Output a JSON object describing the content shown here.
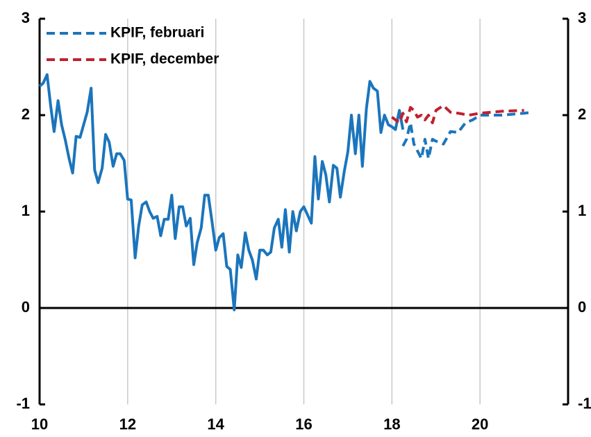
{
  "chart_data": {
    "type": "line",
    "xlim": [
      10,
      22
    ],
    "xticks": [
      10,
      12,
      14,
      16,
      18,
      20
    ],
    "ylim": [
      -1,
      3
    ],
    "yticks": [
      -1,
      0,
      1,
      2,
      3
    ],
    "y2lim": [
      -1,
      3
    ],
    "y2ticks": [
      -1,
      0,
      1,
      2,
      3
    ],
    "grid": true,
    "legend": "upper left",
    "series": [
      {
        "color": "#1b75bc",
        "dash": false,
        "x": [
          10.0,
          10.08,
          10.17,
          10.25,
          10.33,
          10.42,
          10.5,
          10.58,
          10.67,
          10.75,
          10.83,
          10.92,
          11.0,
          11.08,
          11.17,
          11.25,
          11.33,
          11.42,
          11.5,
          11.58,
          11.67,
          11.75,
          11.83,
          11.92,
          12.0,
          12.08,
          12.17,
          12.25,
          12.33,
          12.42,
          12.5,
          12.58,
          12.67,
          12.75,
          12.83,
          12.92,
          13.0,
          13.08,
          13.17,
          13.25,
          13.33,
          13.42,
          13.5,
          13.58,
          13.67,
          13.75,
          13.83,
          13.92,
          14.0,
          14.08,
          14.17,
          14.25,
          14.33,
          14.42,
          14.5,
          14.58,
          14.67,
          14.75,
          14.83,
          14.92,
          15.0,
          15.08,
          15.17,
          15.25,
          15.33,
          15.42,
          15.5,
          15.58,
          15.67,
          15.75,
          15.83,
          15.92,
          16.0,
          16.08,
          16.17,
          16.25,
          16.33,
          16.42,
          16.5,
          16.58,
          16.67,
          16.75,
          16.83,
          16.92,
          17.0,
          17.08,
          17.17,
          17.25,
          17.33,
          17.42,
          17.5,
          17.58,
          17.67,
          17.75,
          17.83,
          17.92,
          18.0,
          18.08,
          18.17,
          18.25
        ],
        "values": [
          2.3,
          2.33,
          2.42,
          2.1,
          1.83,
          2.15,
          1.9,
          1.75,
          1.55,
          1.4,
          1.78,
          1.77,
          1.9,
          2.03,
          2.28,
          1.43,
          1.3,
          1.45,
          1.8,
          1.72,
          1.47,
          1.6,
          1.6,
          1.53,
          1.13,
          1.12,
          0.52,
          0.85,
          1.07,
          1.1,
          1.0,
          0.93,
          0.95,
          0.75,
          0.92,
          0.92,
          1.17,
          0.72,
          1.05,
          1.05,
          0.85,
          0.93,
          0.45,
          0.68,
          0.83,
          1.17,
          1.17,
          0.88,
          0.6,
          0.73,
          0.77,
          0.43,
          0.4,
          -0.02,
          0.55,
          0.42,
          0.78,
          0.6,
          0.5,
          0.3,
          0.6,
          0.6,
          0.55,
          0.58,
          0.83,
          0.92,
          0.63,
          1.02,
          0.58,
          1.0,
          0.8,
          1.0,
          1.05,
          0.97,
          0.88,
          1.57,
          1.13,
          1.52,
          1.38,
          1.1,
          1.48,
          1.45,
          1.15,
          1.42,
          1.62,
          2.0,
          1.6,
          2.0,
          1.47,
          2.07,
          2.35,
          2.28,
          2.25,
          1.82,
          2.0,
          1.9,
          1.88,
          1.85,
          2.05,
          1.85
        ]
      },
      {
        "name": "KPIF, februari",
        "color": "#1b75bc",
        "dash": true,
        "x": [
          18.25,
          18.33,
          18.42,
          18.5,
          18.58,
          18.67,
          18.75,
          18.83,
          18.92,
          19.0,
          19.17,
          19.33,
          19.5,
          19.67,
          19.83,
          20.0,
          20.5,
          21.0,
          21.2
        ],
        "values": [
          1.68,
          1.75,
          1.92,
          1.7,
          1.63,
          1.55,
          1.75,
          1.55,
          1.75,
          1.73,
          1.7,
          1.83,
          1.82,
          1.92,
          1.95,
          2.0,
          2.0,
          2.02,
          2.03
        ]
      },
      {
        "name": "KPIF, december",
        "color": "#c0202e",
        "dash": true,
        "x": [
          18.0,
          18.17,
          18.25,
          18.33,
          18.42,
          18.5,
          18.58,
          18.67,
          18.75,
          18.83,
          18.92,
          19.0,
          19.17,
          19.33,
          19.5,
          19.75,
          20.0,
          20.5,
          21.0
        ],
        "values": [
          1.98,
          1.92,
          2.02,
          1.93,
          2.08,
          2.05,
          1.98,
          2.0,
          1.95,
          2.0,
          1.92,
          2.05,
          2.1,
          2.03,
          2.02,
          2.0,
          2.02,
          2.04,
          2.05
        ]
      }
    ]
  }
}
